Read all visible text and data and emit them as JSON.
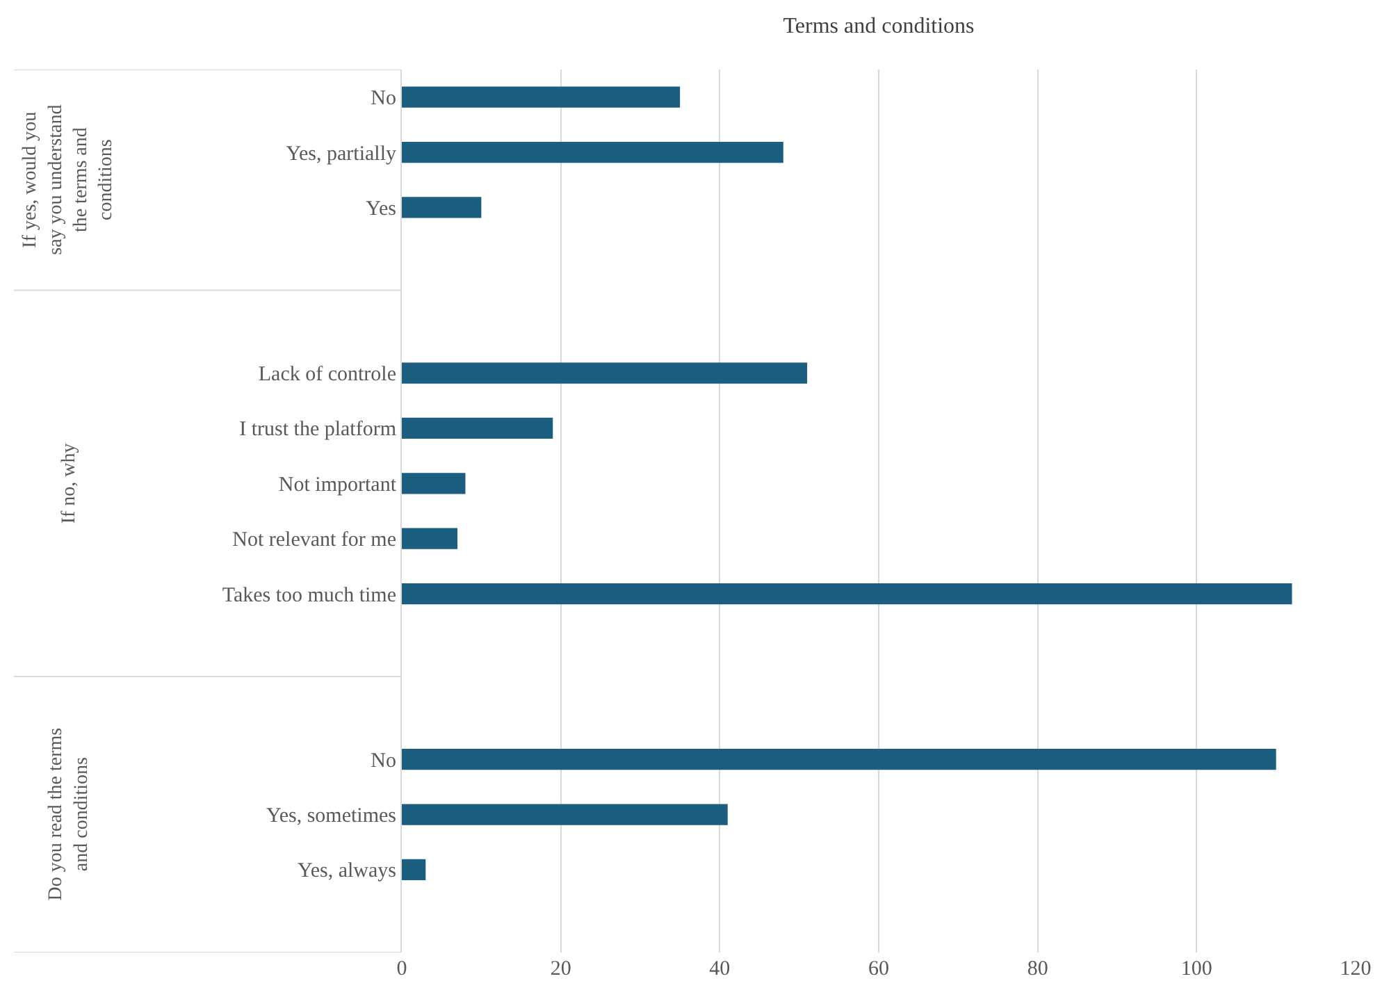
{
  "chart_data": {
    "type": "bar",
    "orientation": "horizontal",
    "title": "Terms and conditions",
    "categories": [
      "No",
      "Yes, partially",
      "Yes",
      null,
      null,
      "Lack of controle",
      "I trust the platform",
      "Not important",
      "Not relevant for me",
      "Takes too much time",
      null,
      null,
      "No",
      "Yes, sometimes",
      "Yes, always",
      null
    ],
    "values": [
      35,
      48,
      10,
      null,
      null,
      51,
      19,
      8,
      7,
      112,
      null,
      null,
      110,
      41,
      3,
      null
    ],
    "color": "#1b5e7f",
    "xlim": [
      0,
      120
    ],
    "xticks": [
      0,
      20,
      40,
      60,
      80,
      100,
      120
    ],
    "grid": "x",
    "annotations": [
      "If yes, would you say you understand the terms and conditions",
      "If no, why",
      "Do you read the terms and conditions"
    ]
  }
}
